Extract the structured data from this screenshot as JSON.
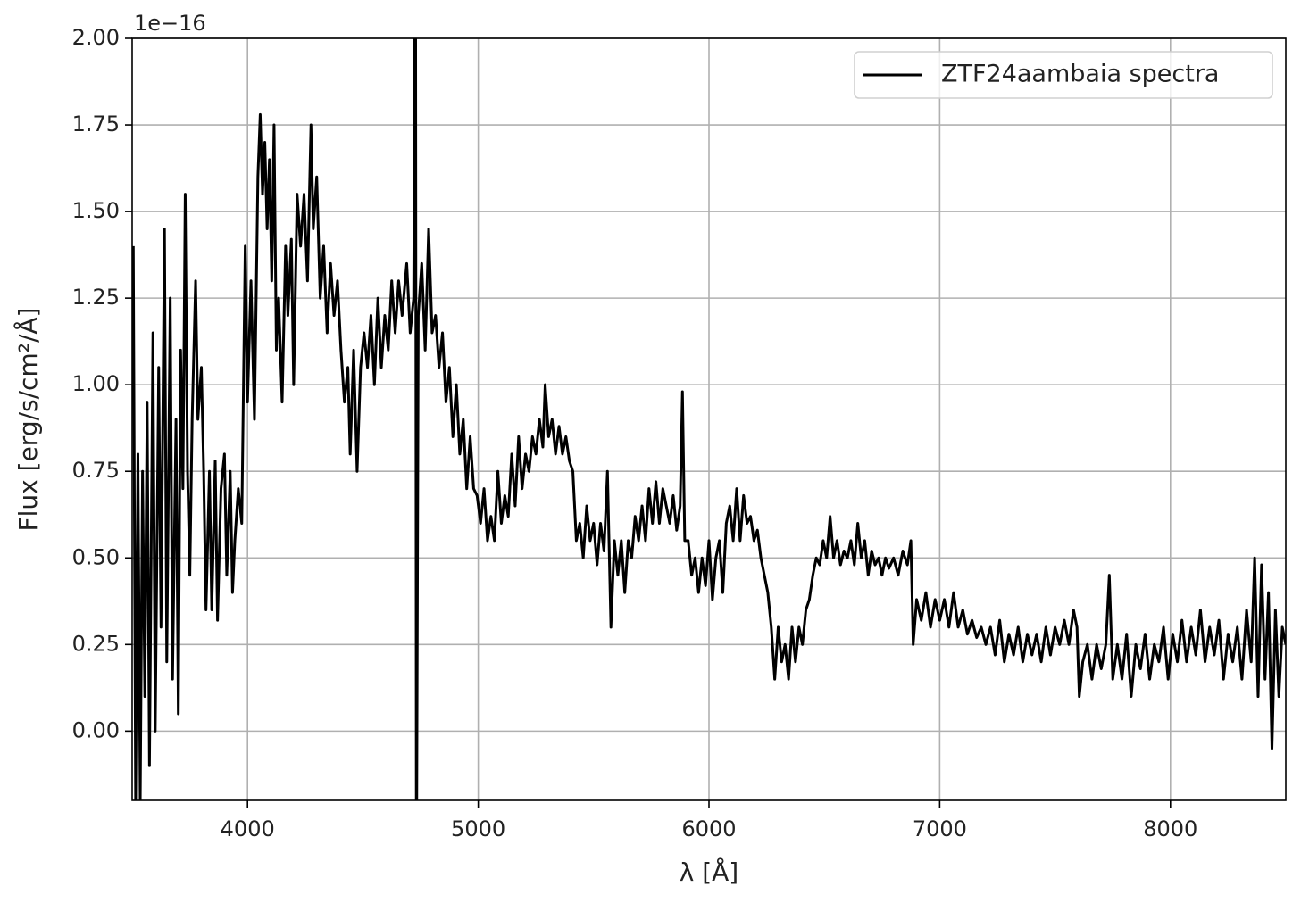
{
  "chart_data": {
    "type": "line",
    "xlabel": "λ [Å]",
    "ylabel": "Flux [erg/s/cm²/Å]",
    "y_offset_label": "1e−16",
    "xlim": [
      3500,
      8500
    ],
    "xticks": [
      4000,
      5000,
      6000,
      7000,
      8000
    ],
    "ylim": [
      -0.2,
      2.0
    ],
    "yticks": [
      {
        "value": 0,
        "label": "0.00"
      },
      0.25,
      {
        "value": 0.5,
        "label": "0.50"
      },
      0.75,
      {
        "value": 1,
        "label": "1.00"
      },
      1.25,
      {
        "value": 1.5,
        "label": "1.50"
      },
      1.75,
      {
        "value": 2,
        "label": "2.00"
      }
    ],
    "grid": true,
    "legend": "upper right",
    "x": [
      3505,
      3515,
      3525,
      3535,
      3545,
      3555,
      3565,
      3575,
      3590,
      3600,
      3615,
      3625,
      3640,
      3650,
      3665,
      3675,
      3690,
      3700,
      3710,
      3720,
      3730,
      3740,
      3750,
      3760,
      3775,
      3785,
      3800,
      3810,
      3820,
      3835,
      3845,
      3860,
      3870,
      3885,
      3900,
      3910,
      3925,
      3935,
      3945,
      3960,
      3975,
      3990,
      4000,
      4015,
      4030,
      4045,
      4055,
      4065,
      4075,
      4085,
      4095,
      4105,
      4115,
      4125,
      4135,
      4150,
      4165,
      4175,
      4190,
      4200,
      4215,
      4230,
      4245,
      4260,
      4275,
      4285,
      4300,
      4315,
      4330,
      4345,
      4360,
      4375,
      4390,
      4405,
      4420,
      4435,
      4445,
      4460,
      4475,
      4490,
      4505,
      4520,
      4535,
      4550,
      4565,
      4580,
      4595,
      4610,
      4625,
      4640,
      4655,
      4670,
      4690,
      4705,
      4720,
      4728,
      4732,
      4740,
      4755,
      4770,
      4785,
      4800,
      4815,
      4830,
      4845,
      4860,
      4875,
      4890,
      4905,
      4920,
      4935,
      4950,
      4965,
      4980,
      4995,
      5010,
      5025,
      5040,
      5055,
      5070,
      5085,
      5100,
      5115,
      5130,
      5145,
      5160,
      5175,
      5190,
      5205,
      5220,
      5235,
      5250,
      5265,
      5280,
      5290,
      5305,
      5320,
      5335,
      5350,
      5365,
      5380,
      5395,
      5410,
      5425,
      5440,
      5455,
      5470,
      5485,
      5500,
      5515,
      5530,
      5545,
      5560,
      5575,
      5590,
      5605,
      5620,
      5635,
      5650,
      5665,
      5680,
      5695,
      5710,
      5725,
      5740,
      5755,
      5770,
      5785,
      5800,
      5815,
      5830,
      5845,
      5860,
      5875,
      5885,
      5895,
      5910,
      5925,
      5940,
      5955,
      5970,
      5985,
      6000,
      6015,
      6030,
      6045,
      6060,
      6075,
      6090,
      6105,
      6120,
      6135,
      6150,
      6165,
      6180,
      6195,
      6210,
      6225,
      6240,
      6255,
      6270,
      6285,
      6300,
      6315,
      6330,
      6345,
      6360,
      6375,
      6390,
      6405,
      6420,
      6435,
      6450,
      6465,
      6480,
      6495,
      6510,
      6525,
      6540,
      6555,
      6570,
      6585,
      6600,
      6615,
      6630,
      6645,
      6660,
      6675,
      6690,
      6705,
      6720,
      6735,
      6750,
      6765,
      6780,
      6800,
      6820,
      6840,
      6860,
      6875,
      6885,
      6900,
      6920,
      6940,
      6960,
      6980,
      7000,
      7020,
      7040,
      7060,
      7080,
      7100,
      7120,
      7140,
      7160,
      7180,
      7200,
      7220,
      7240,
      7260,
      7280,
      7300,
      7320,
      7340,
      7360,
      7380,
      7400,
      7420,
      7440,
      7460,
      7480,
      7500,
      7520,
      7540,
      7560,
      7580,
      7595,
      7605,
      7620,
      7640,
      7660,
      7680,
      7700,
      7720,
      7735,
      7750,
      7770,
      7790,
      7810,
      7830,
      7850,
      7870,
      7890,
      7910,
      7930,
      7950,
      7970,
      7990,
      8010,
      8030,
      8050,
      8070,
      8090,
      8110,
      8130,
      8150,
      8170,
      8190,
      8210,
      8230,
      8250,
      8270,
      8290,
      8310,
      8330,
      8350,
      8365,
      8380,
      8395,
      8410,
      8425,
      8440,
      8455,
      8470,
      8485,
      8500
    ],
    "series": [
      {
        "name": "ZTF24aambaia spectra",
        "color": "#000000",
        "values": [
          1.4,
          -0.2,
          0.8,
          -0.2,
          0.75,
          0.1,
          0.95,
          -0.1,
          1.15,
          0.0,
          1.05,
          0.3,
          1.45,
          0.2,
          1.25,
          0.15,
          0.9,
          0.05,
          1.1,
          0.7,
          1.55,
          0.75,
          0.45,
          0.9,
          1.3,
          0.9,
          1.05,
          0.75,
          0.35,
          0.75,
          0.35,
          0.78,
          0.32,
          0.7,
          0.8,
          0.45,
          0.75,
          0.4,
          0.55,
          0.7,
          0.6,
          1.4,
          0.95,
          1.3,
          0.9,
          1.6,
          1.78,
          1.55,
          1.7,
          1.45,
          1.65,
          1.3,
          1.75,
          1.1,
          1.25,
          0.95,
          1.4,
          1.2,
          1.42,
          1.0,
          1.55,
          1.4,
          1.55,
          1.3,
          1.75,
          1.45,
          1.6,
          1.25,
          1.4,
          1.15,
          1.35,
          1.2,
          1.3,
          1.1,
          0.95,
          1.05,
          0.8,
          1.1,
          0.75,
          1.05,
          1.15,
          1.05,
          1.2,
          1.0,
          1.25,
          1.05,
          1.2,
          1.1,
          1.3,
          1.15,
          1.3,
          1.2,
          1.35,
          1.15,
          1.25,
          2.5,
          -0.5,
          1.2,
          1.35,
          1.1,
          1.45,
          1.15,
          1.2,
          1.05,
          1.15,
          0.95,
          1.05,
          0.85,
          1.0,
          0.8,
          0.9,
          0.7,
          0.85,
          0.7,
          0.68,
          0.6,
          0.7,
          0.55,
          0.62,
          0.55,
          0.75,
          0.6,
          0.68,
          0.62,
          0.8,
          0.65,
          0.85,
          0.7,
          0.8,
          0.75,
          0.85,
          0.8,
          0.9,
          0.82,
          1.0,
          0.85,
          0.9,
          0.8,
          0.88,
          0.8,
          0.85,
          0.78,
          0.75,
          0.55,
          0.6,
          0.5,
          0.65,
          0.55,
          0.6,
          0.48,
          0.6,
          0.52,
          0.75,
          0.3,
          0.55,
          0.45,
          0.55,
          0.4,
          0.55,
          0.5,
          0.62,
          0.55,
          0.65,
          0.55,
          0.7,
          0.6,
          0.72,
          0.6,
          0.7,
          0.65,
          0.6,
          0.68,
          0.58,
          0.65,
          0.98,
          0.55,
          0.55,
          0.45,
          0.5,
          0.4,
          0.5,
          0.42,
          0.55,
          0.38,
          0.5,
          0.55,
          0.4,
          0.6,
          0.65,
          0.55,
          0.7,
          0.55,
          0.68,
          0.6,
          0.62,
          0.55,
          0.58,
          0.5,
          0.45,
          0.4,
          0.3,
          0.15,
          0.3,
          0.2,
          0.25,
          0.15,
          0.3,
          0.2,
          0.3,
          0.25,
          0.35,
          0.38,
          0.45,
          0.5,
          0.48,
          0.55,
          0.5,
          0.62,
          0.5,
          0.55,
          0.48,
          0.52,
          0.5,
          0.55,
          0.48,
          0.6,
          0.5,
          0.55,
          0.45,
          0.52,
          0.48,
          0.5,
          0.45,
          0.5,
          0.47,
          0.5,
          0.45,
          0.52,
          0.48,
          0.55,
          0.25,
          0.38,
          0.32,
          0.4,
          0.3,
          0.38,
          0.32,
          0.38,
          0.3,
          0.4,
          0.3,
          0.35,
          0.28,
          0.32,
          0.27,
          0.3,
          0.25,
          0.3,
          0.22,
          0.32,
          0.2,
          0.28,
          0.22,
          0.3,
          0.2,
          0.28,
          0.22,
          0.28,
          0.2,
          0.3,
          0.22,
          0.3,
          0.25,
          0.32,
          0.25,
          0.35,
          0.3,
          0.1,
          0.2,
          0.25,
          0.15,
          0.25,
          0.18,
          0.25,
          0.45,
          0.15,
          0.25,
          0.15,
          0.28,
          0.1,
          0.25,
          0.18,
          0.28,
          0.15,
          0.25,
          0.2,
          0.3,
          0.15,
          0.28,
          0.2,
          0.32,
          0.2,
          0.3,
          0.22,
          0.35,
          0.2,
          0.3,
          0.22,
          0.32,
          0.15,
          0.28,
          0.2,
          0.3,
          0.15,
          0.35,
          0.2,
          0.5,
          0.1,
          0.48,
          0.15,
          0.4,
          -0.05,
          0.35,
          0.1,
          0.3,
          0.25
        ]
      }
    ]
  }
}
